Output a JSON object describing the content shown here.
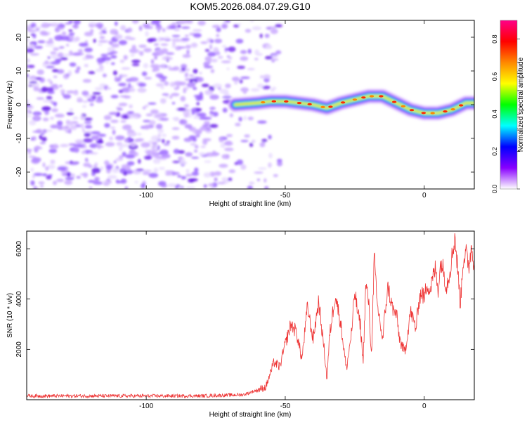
{
  "title": "KOM5.2026.084.07.29.G10",
  "chart_data": [
    {
      "type": "heatmap",
      "title": "KOM5.2026.084.07.29.G10",
      "xlabel": "Height of straight line (km)",
      "ylabel": "Frequency (Hz)",
      "xlim": [
        -143,
        18
      ],
      "ylim": [
        -25,
        25
      ],
      "xticks": [
        -100,
        -50,
        0
      ],
      "yticks": [
        -20,
        -10,
        0,
        10,
        20
      ],
      "noise_region_x": [
        -143,
        -52
      ],
      "signal_ridge": {
        "x": [
          -68,
          -60,
          -55,
          -50,
          -45,
          -40,
          -35,
          -30,
          -25,
          -20,
          -15,
          -10,
          -5,
          0,
          5,
          10,
          15,
          18
        ],
        "freq_hz": [
          0.0,
          0.5,
          1.0,
          1.0,
          0.5,
          0.0,
          -1.0,
          0.5,
          1.5,
          2.5,
          2.5,
          0.5,
          -1.5,
          -2.5,
          -2.5,
          -1.5,
          0.5,
          0.5
        ]
      },
      "colorbar": {
        "label": "Normalized spectral amplitude",
        "range": [
          0.0,
          0.9
        ],
        "ticks": [
          "0.0",
          "0.2",
          "0.4",
          "0.6",
          "0.8"
        ],
        "colors": [
          "#ffffff",
          "#8800ff",
          "#0000ff",
          "#00ffff",
          "#00ff00",
          "#ffff00",
          "#ff8800",
          "#ff0000",
          "#ff0088"
        ]
      }
    },
    {
      "type": "line",
      "xlabel": "Height of straight line (km)",
      "ylabel": "SNR (10 * v/v)",
      "xlim": [
        -143,
        18
      ],
      "ylim": [
        0,
        6700
      ],
      "xticks": [
        -100,
        -50,
        0
      ],
      "yticks": [
        2000,
        4000,
        6000
      ],
      "series": [
        {
          "name": "SNR",
          "color": "#ee3333",
          "x": [
            -143,
            -120,
            -100,
            -80,
            -65,
            -57,
            -54,
            -52,
            -50,
            -48,
            -46,
            -44,
            -42,
            -40,
            -38,
            -36,
            -35,
            -34,
            -32,
            -30,
            -28,
            -26,
            -25,
            -24,
            -23,
            -22,
            -21,
            -20,
            -19,
            -18,
            -17,
            -16,
            -15,
            -14,
            -13,
            -12,
            -11,
            -10,
            -9,
            -8,
            -7,
            -6,
            -5,
            -4,
            -3,
            -2,
            -1,
            0,
            1,
            2,
            3,
            4,
            5,
            6,
            7,
            8,
            9,
            10,
            11,
            12,
            13,
            14,
            15,
            16,
            17,
            18
          ],
          "y": [
            150,
            150,
            150,
            150,
            200,
            500,
            1500,
            1300,
            2200,
            3000,
            2700,
            1600,
            3700,
            2400,
            3900,
            2000,
            800,
            2600,
            4200,
            3000,
            1200,
            2800,
            4300,
            3500,
            3000,
            1500,
            4600,
            3900,
            1700,
            5700,
            3800,
            3200,
            2300,
            3600,
            4500,
            3900,
            3500,
            3400,
            2500,
            2100,
            1900,
            2600,
            3500,
            3200,
            2800,
            3900,
            4300,
            4000,
            4700,
            4300,
            4800,
            5200,
            4400,
            5500,
            5100,
            4500,
            5000,
            5700,
            6500,
            5200,
            3800,
            5600,
            5800,
            5300,
            6100,
            5400
          ]
        }
      ]
    }
  ]
}
